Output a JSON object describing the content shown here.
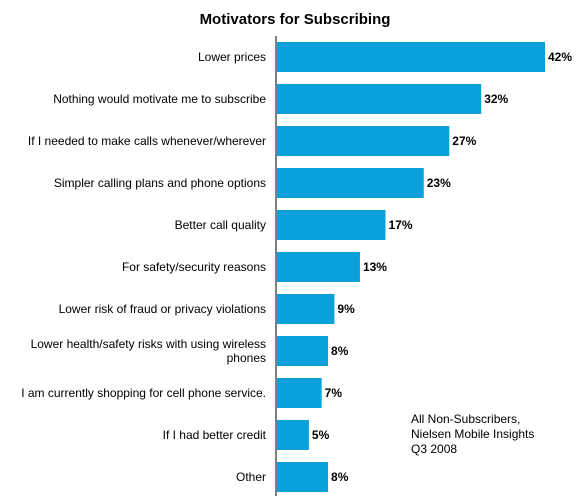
{
  "chart_data": {
    "type": "bar",
    "orientation": "horizontal",
    "title": "Motivators for Subscribing",
    "categories": [
      [
        "Lower prices"
      ],
      [
        "Nothing would motivate me to subscribe"
      ],
      [
        "If I needed to make calls whenever/wherever"
      ],
      [
        "Simpler calling plans and phone options"
      ],
      [
        "Better call quality"
      ],
      [
        "For safety/security reasons"
      ],
      [
        "Lower risk of fraud or privacy violations"
      ],
      [
        "Lower health/safety risks with using wireless",
        "phones"
      ],
      [
        "I am currently shopping for cell phone service."
      ],
      [
        "If I had better credit"
      ],
      [
        "Other"
      ]
    ],
    "values": [
      42,
      32,
      27,
      23,
      17,
      13,
      9,
      8,
      7,
      5,
      8
    ],
    "value_labels": [
      "42%",
      "32%",
      "27%",
      "23%",
      "17%",
      "13%",
      "9%",
      "8%",
      "7%",
      "5%",
      "8%"
    ],
    "xlim": [
      0,
      42
    ],
    "grid": false,
    "bar_color": "#0aa0dc",
    "annotation": [
      "All Non-Subscribers,",
      "Nielsen Mobile Insights",
      "Q3 2008"
    ]
  }
}
